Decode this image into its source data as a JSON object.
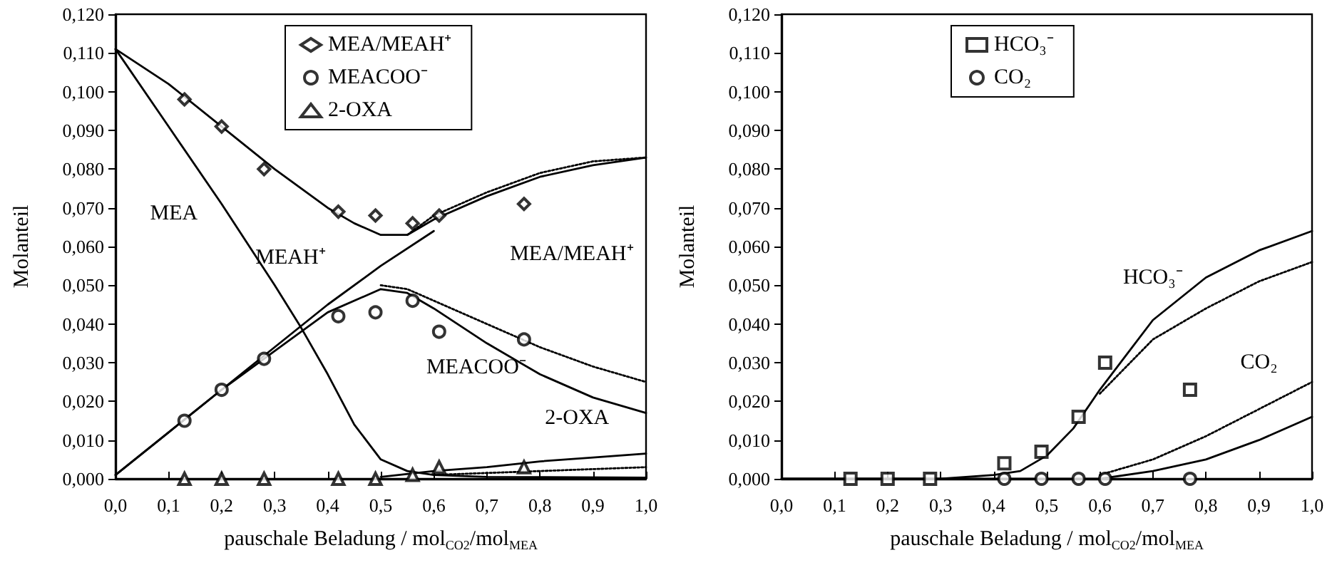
{
  "chart_data": [
    {
      "type": "scatter",
      "xlabel": "pauschale Beladung / mol$_{CO2}$/mol$_{MEA}$",
      "ylabel": "Molanteil",
      "xlim": [
        0,
        1
      ],
      "ylim": [
        0,
        0.12
      ],
      "xticks": [
        {
          "value": 0,
          "label": "0,0"
        },
        {
          "value": 0.1,
          "label": "0,1"
        },
        {
          "value": 0.2,
          "label": "0,2"
        },
        {
          "value": 0.3,
          "label": "0,3"
        },
        {
          "value": 0.4,
          "label": "0,4"
        },
        {
          "value": 0.5,
          "label": "0,5"
        },
        {
          "value": 0.6,
          "label": "0,6"
        },
        {
          "value": 0.7,
          "label": "0,7"
        },
        {
          "value": 0.8,
          "label": "0,8"
        },
        {
          "value": 0.9,
          "label": "0,9"
        },
        {
          "value": 1,
          "label": "1,0"
        }
      ],
      "yticks": [
        {
          "value": 0,
          "label": "0,000"
        },
        {
          "value": 0.01,
          "label": "0,010"
        },
        {
          "value": 0.02,
          "label": "0,020"
        },
        {
          "value": 0.03,
          "label": "0,030"
        },
        {
          "value": 0.04,
          "label": "0,040"
        },
        {
          "value": 0.05,
          "label": "0,050"
        },
        {
          "value": 0.06,
          "label": "0,060"
        },
        {
          "value": 0.07,
          "label": "0,070"
        },
        {
          "value": 0.08,
          "label": "0,080"
        },
        {
          "value": 0.09,
          "label": "0,090"
        },
        {
          "value": 0.1,
          "label": "0,100"
        },
        {
          "value": 0.11,
          "label": "0,110"
        },
        {
          "value": 0.12,
          "label": "0,120"
        }
      ],
      "grid": false,
      "legend": "top",
      "annotations": [
        "MEA",
        "MEAH⁺",
        "MEA/MEAH⁺",
        "MEACOO⁻",
        "2-OXA"
      ],
      "series": [
        {
          "name": "MEA/MEAH⁺",
          "color": "#000000",
          "marker": "diamond",
          "x": [
            0.13,
            0.2,
            0.28,
            0.42,
            0.49,
            0.56,
            0.61,
            0.77
          ],
          "values": [
            0.098,
            0.091,
            0.08,
            0.069,
            0.068,
            0.066,
            0.068,
            0.071
          ]
        },
        {
          "name": "MEACOO⁻",
          "color": "#000000",
          "marker": "circle",
          "x": [
            0.13,
            0.2,
            0.28,
            0.42,
            0.49,
            0.56,
            0.61,
            0.77
          ],
          "values": [
            0.015,
            0.023,
            0.031,
            0.042,
            0.043,
            0.046,
            0.038,
            0.036
          ]
        },
        {
          "name": "2-OXA",
          "color": "#000000",
          "marker": "triangle",
          "x": [
            0.13,
            0.2,
            0.28,
            0.42,
            0.49,
            0.56,
            0.61,
            0.77
          ],
          "values": [
            0,
            0,
            0,
            0,
            0,
            0.001,
            0.003,
            0.003
          ]
        },
        {
          "type": "line",
          "color": "#000000",
          "marker": "none",
          "line_style": "solid",
          "x": [
            0,
            0.1,
            0.2,
            0.3,
            0.4,
            0.45,
            0.5,
            0.55,
            0.6,
            0.7,
            0.8,
            0.9,
            1
          ],
          "values": [
            0.111,
            0.102,
            0.091,
            0.08,
            0.07,
            0.066,
            0.063,
            0.063,
            0.067,
            0.073,
            0.078,
            0.081,
            0.083
          ]
        },
        {
          "type": "line",
          "color": "#000000",
          "marker": "none",
          "line_style": "dotted",
          "x": [
            0.55,
            0.6,
            0.7,
            0.8,
            0.9,
            1
          ],
          "values": [
            0.063,
            0.068,
            0.074,
            0.079,
            0.082,
            0.083
          ]
        },
        {
          "type": "line",
          "color": "#000000",
          "marker": "none",
          "line_style": "solid",
          "x": [
            0,
            0.1,
            0.2,
            0.3,
            0.35,
            0.4,
            0.45,
            0.5,
            0.55,
            0.6,
            0.7,
            1
          ],
          "values": [
            0.111,
            0.091,
            0.071,
            0.05,
            0.039,
            0.027,
            0.014,
            0.005,
            0.002,
            0.001,
            0.0005,
            0.0003
          ]
        },
        {
          "type": "line",
          "color": "#000000",
          "marker": "none",
          "line_style": "solid",
          "x": [
            0,
            0.1,
            0.2,
            0.3,
            0.4,
            0.5,
            0.6
          ],
          "values": [
            0.001,
            0.012,
            0.023,
            0.034,
            0.045,
            0.055,
            0.064
          ]
        },
        {
          "type": "line",
          "color": "#000000",
          "marker": "none",
          "line_style": "solid",
          "x": [
            0,
            0.1,
            0.2,
            0.3,
            0.4,
            0.5,
            0.55,
            0.6,
            0.7,
            0.8,
            0.9,
            1
          ],
          "values": [
            0.001,
            0.012,
            0.023,
            0.033,
            0.043,
            0.049,
            0.048,
            0.044,
            0.035,
            0.027,
            0.021,
            0.017
          ]
        },
        {
          "type": "line",
          "color": "#000000",
          "marker": "none",
          "line_style": "dotted",
          "x": [
            0.5,
            0.55,
            0.6,
            0.7,
            0.8,
            0.9,
            1
          ],
          "values": [
            0.05,
            0.049,
            0.046,
            0.04,
            0.034,
            0.029,
            0.025
          ]
        },
        {
          "type": "line",
          "color": "#000000",
          "marker": "none",
          "line_style": "solid",
          "x": [
            0.5,
            0.6,
            0.7,
            0.8,
            0.9,
            1
          ],
          "values": [
            0.0005,
            0.002,
            0.003,
            0.0045,
            0.0055,
            0.0065
          ]
        },
        {
          "type": "line",
          "color": "#000000",
          "marker": "none",
          "line_style": "dotted",
          "x": [
            0.6,
            0.8,
            1
          ],
          "values": [
            0.001,
            0.002,
            0.003
          ]
        }
      ]
    },
    {
      "type": "scatter",
      "xlabel": "pauschale Beladung / mol$_{CO2}$/mol$_{MEA}$",
      "ylabel": "Molanteil",
      "xlim": [
        0,
        1
      ],
      "ylim": [
        0,
        0.12
      ],
      "xticks": [
        {
          "value": 0,
          "label": "0,0"
        },
        {
          "value": 0.1,
          "label": "0,1"
        },
        {
          "value": 0.2,
          "label": "0,2"
        },
        {
          "value": 0.3,
          "label": "0,3"
        },
        {
          "value": 0.4,
          "label": "0,4"
        },
        {
          "value": 0.5,
          "label": "0,5"
        },
        {
          "value": 0.6,
          "label": "0,6"
        },
        {
          "value": 0.7,
          "label": "0,7"
        },
        {
          "value": 0.8,
          "label": "0,8"
        },
        {
          "value": 0.9,
          "label": "0,9"
        },
        {
          "value": 1,
          "label": "1,0"
        }
      ],
      "yticks": [
        {
          "value": 0,
          "label": "0,000"
        },
        {
          "value": 0.01,
          "label": "0,010"
        },
        {
          "value": 0.02,
          "label": "0,020"
        },
        {
          "value": 0.03,
          "label": "0,030"
        },
        {
          "value": 0.04,
          "label": "0,040"
        },
        {
          "value": 0.05,
          "label": "0,050"
        },
        {
          "value": 0.06,
          "label": "0,060"
        },
        {
          "value": 0.07,
          "label": "0,070"
        },
        {
          "value": 0.08,
          "label": "0,080"
        },
        {
          "value": 0.09,
          "label": "0,090"
        },
        {
          "value": 0.1,
          "label": "0,100"
        },
        {
          "value": 0.11,
          "label": "0,110"
        },
        {
          "value": 0.12,
          "label": "0,120"
        }
      ],
      "grid": false,
      "legend": "top",
      "annotations": [
        "HCO₃⁻",
        "CO₂"
      ],
      "series": [
        {
          "name": "HCO₃⁻",
          "color": "#000000",
          "marker": "square",
          "x": [
            0.13,
            0.2,
            0.28,
            0.42,
            0.49,
            0.56,
            0.61,
            0.77
          ],
          "values": [
            0,
            0,
            0,
            0.004,
            0.007,
            0.016,
            0.03,
            0.023
          ]
        },
        {
          "name": "CO₂",
          "color": "#000000",
          "marker": "circle",
          "x": [
            0.42,
            0.49,
            0.56,
            0.61,
            0.77
          ],
          "values": [
            0,
            0,
            0,
            0,
            0
          ]
        },
        {
          "type": "line",
          "color": "#000000",
          "marker": "none",
          "line_style": "solid",
          "x": [
            0,
            0.3,
            0.4,
            0.45,
            0.5,
            0.55,
            0.6,
            0.65,
            0.7,
            0.8,
            0.9,
            1
          ],
          "values": [
            0,
            0,
            0.001,
            0.002,
            0.006,
            0.013,
            0.023,
            0.032,
            0.041,
            0.052,
            0.059,
            0.064
          ]
        },
        {
          "type": "line",
          "color": "#000000",
          "marker": "none",
          "line_style": "dotted",
          "x": [
            0.6,
            0.7,
            0.8,
            0.9,
            1
          ],
          "values": [
            0.022,
            0.036,
            0.044,
            0.051,
            0.056
          ]
        },
        {
          "type": "line",
          "color": "#000000",
          "marker": "none",
          "line_style": "solid",
          "x": [
            0,
            0.6,
            0.7,
            0.8,
            0.9,
            1
          ],
          "values": [
            0,
            0,
            0.002,
            0.005,
            0.01,
            0.016
          ]
        },
        {
          "type": "line",
          "color": "#000000",
          "marker": "none",
          "line_style": "dotted",
          "x": [
            0.6,
            0.7,
            0.8,
            0.9,
            1
          ],
          "values": [
            0.001,
            0.005,
            0.011,
            0.018,
            0.025
          ]
        }
      ]
    }
  ]
}
